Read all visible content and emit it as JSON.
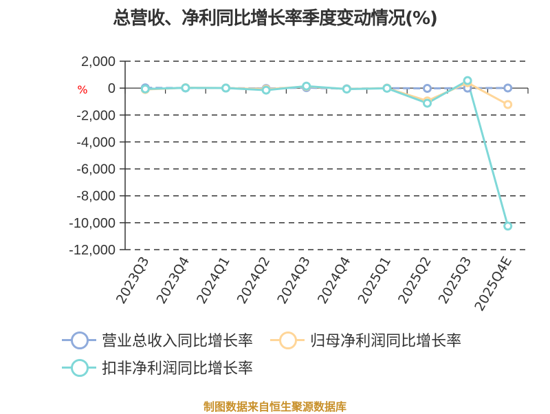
{
  "title": "总营收、净利同比增长率季度变动情况(%)",
  "unit_label": "%",
  "source": "制图数据来自恒生聚源数据库",
  "colors": {
    "revenue": "#8fabdc",
    "net_profit": "#ffd699",
    "deducted_net_profit": "#7fd8d8",
    "source_text": "#c8902a"
  },
  "legend": [
    {
      "label": "营业总收入同比增长率",
      "color": "#8fabdc"
    },
    {
      "label": "归母净利润同比增长率",
      "color": "#ffd699"
    },
    {
      "label": "扣非净利润同比增长率",
      "color": "#7fd8d8"
    }
  ],
  "chart_data": {
    "type": "line",
    "title": "总营收、净利同比增长率季度变动情况(%)",
    "xlabel": "",
    "ylabel": "%",
    "ylim": [
      -12000,
      2000
    ],
    "yticks": [
      2000,
      0,
      -2000,
      -4000,
      -6000,
      -8000,
      -10000,
      -12000
    ],
    "ytick_labels": [
      "2,000",
      "0",
      "-2,000",
      "-4,000",
      "-6,000",
      "-8,000",
      "-10,000",
      "-12,000"
    ],
    "grid": true,
    "legend_position": "bottom",
    "categories": [
      "2023Q3",
      "2023Q4",
      "2024Q1",
      "2024Q2",
      "2024Q3",
      "2024Q4",
      "2025Q1",
      "2025Q2",
      "2025Q3",
      "2025Q4E"
    ],
    "series": [
      {
        "name": "营业总收入同比增长率",
        "values": [
          20,
          10,
          5,
          -30,
          40,
          -50,
          0,
          -20,
          0,
          10
        ]
      },
      {
        "name": "归母净利润同比增长率",
        "values": [
          -100,
          30,
          10,
          -80,
          120,
          -60,
          0,
          -950,
          400,
          -1220
        ]
      },
      {
        "name": "扣非净利润同比增长率",
        "values": [
          -60,
          20,
          5,
          -150,
          150,
          -70,
          -10,
          -1120,
          560,
          -10250
        ]
      }
    ]
  }
}
